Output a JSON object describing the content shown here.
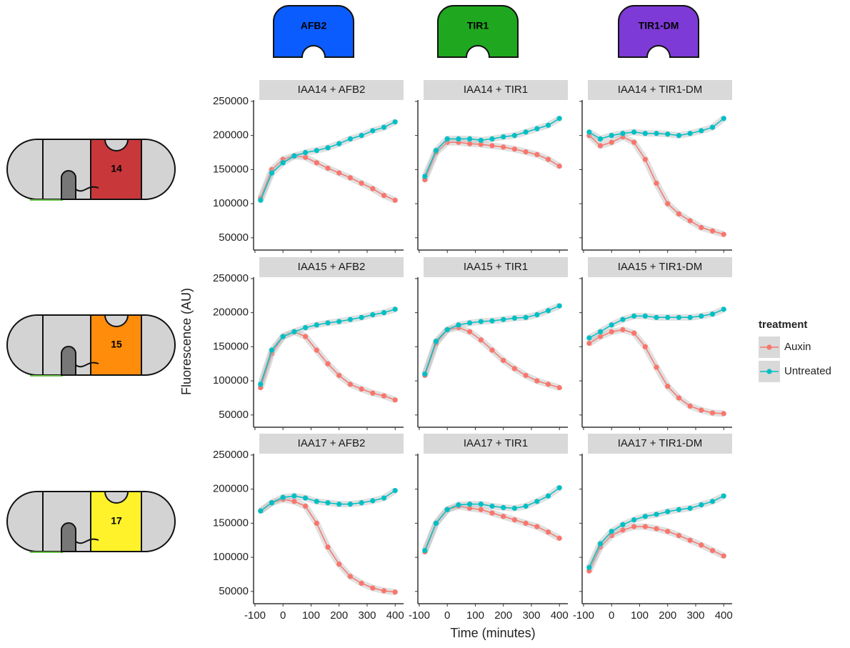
{
  "figure": {
    "xlabel": "Time (minutes)",
    "ylabel": "Fluorescence (AU)",
    "legend_title": "treatment",
    "legend": [
      {
        "name": "Auxin",
        "color": "#F8766D"
      },
      {
        "name": "Untreated",
        "color": "#00BFC4"
      }
    ],
    "column_headers": [
      {
        "label": "AFB2",
        "color": "#0a5cff"
      },
      {
        "label": "TIR1",
        "color": "#1fa81f"
      },
      {
        "label": "TIR1-DM",
        "color": "#7d3ad6"
      }
    ],
    "row_labels": [
      {
        "label": "14",
        "color": "#c8373a"
      },
      {
        "label": "15",
        "color": "#ff8c0a"
      },
      {
        "label": "17",
        "color": "#fff22a"
      }
    ]
  },
  "chart_data": [
    {
      "type": "scatter",
      "title": "IAA14 + AFB2",
      "x": [
        -80,
        -40,
        0,
        40,
        80,
        120,
        160,
        200,
        240,
        280,
        320,
        360,
        400
      ],
      "series": [
        {
          "values": [
            108000,
            150000,
            165000,
            170000,
            168000,
            160000,
            152000,
            145000,
            138000,
            130000,
            122000,
            112000,
            105000
          ]
        },
        {
          "values": [
            105000,
            145000,
            160000,
            170000,
            175000,
            178000,
            182000,
            188000,
            195000,
            200000,
            207000,
            212000,
            220000
          ]
        }
      ],
      "xlim": [
        -105,
        430
      ],
      "ylim": [
        32000,
        252000
      ],
      "xticks": [
        -100,
        0,
        100,
        200,
        300,
        400
      ],
      "yticks": [
        50000,
        100000,
        150000,
        200000,
        250000
      ]
    },
    {
      "type": "scatter",
      "title": "IAA14 + TIR1",
      "x": [
        -80,
        -40,
        0,
        40,
        80,
        120,
        160,
        200,
        240,
        280,
        320,
        360,
        400
      ],
      "series": [
        {
          "values": [
            135000,
            175000,
            190000,
            190000,
            188000,
            187000,
            185000,
            183000,
            180000,
            176000,
            172000,
            165000,
            155000
          ]
        },
        {
          "values": [
            140000,
            178000,
            195000,
            195000,
            195000,
            193000,
            195000,
            198000,
            200000,
            205000,
            210000,
            215000,
            225000
          ]
        }
      ],
      "xlim": [
        -105,
        430
      ],
      "ylim": [
        32000,
        252000
      ],
      "xticks": [
        -100,
        0,
        100,
        200,
        300,
        400
      ],
      "yticks": [
        50000,
        100000,
        150000,
        200000,
        250000
      ]
    },
    {
      "type": "scatter",
      "title": "IAA14 + TIR1-DM",
      "x": [
        -80,
        -40,
        0,
        40,
        80,
        120,
        160,
        200,
        240,
        280,
        320,
        360,
        400
      ],
      "series": [
        {
          "values": [
            200000,
            185000,
            190000,
            198000,
            190000,
            165000,
            130000,
            100000,
            85000,
            75000,
            65000,
            60000,
            55000
          ]
        },
        {
          "values": [
            205000,
            195000,
            200000,
            203000,
            205000,
            203000,
            203000,
            202000,
            200000,
            203000,
            207000,
            212000,
            225000
          ]
        }
      ],
      "xlim": [
        -105,
        430
      ],
      "ylim": [
        32000,
        252000
      ],
      "xticks": [
        -100,
        0,
        100,
        200,
        300,
        400
      ],
      "yticks": [
        50000,
        100000,
        150000,
        200000,
        250000
      ]
    },
    {
      "type": "scatter",
      "title": "IAA15 + AFB2",
      "x": [
        -80,
        -40,
        0,
        40,
        80,
        120,
        160,
        200,
        240,
        280,
        320,
        360,
        400
      ],
      "series": [
        {
          "values": [
            90000,
            140000,
            165000,
            172000,
            165000,
            145000,
            125000,
            108000,
            95000,
            88000,
            82000,
            78000,
            72000
          ]
        },
        {
          "values": [
            95000,
            145000,
            165000,
            172000,
            178000,
            182000,
            185000,
            187000,
            190000,
            193000,
            197000,
            200000,
            205000
          ]
        }
      ],
      "xlim": [
        -105,
        430
      ],
      "ylim": [
        32000,
        252000
      ],
      "xticks": [
        -100,
        0,
        100,
        200,
        300,
        400
      ],
      "yticks": [
        50000,
        100000,
        150000,
        200000,
        250000
      ]
    },
    {
      "type": "scatter",
      "title": "IAA15 + TIR1",
      "x": [
        -80,
        -40,
        0,
        40,
        80,
        120,
        160,
        200,
        240,
        280,
        320,
        360,
        400
      ],
      "series": [
        {
          "values": [
            108000,
            155000,
            175000,
            178000,
            172000,
            160000,
            145000,
            130000,
            118000,
            108000,
            100000,
            95000,
            90000
          ]
        },
        {
          "values": [
            110000,
            158000,
            175000,
            182000,
            185000,
            187000,
            188000,
            190000,
            192000,
            193000,
            197000,
            203000,
            210000
          ]
        }
      ],
      "xlim": [
        -105,
        430
      ],
      "ylim": [
        32000,
        252000
      ],
      "xticks": [
        -100,
        0,
        100,
        200,
        300,
        400
      ],
      "yticks": [
        50000,
        100000,
        150000,
        200000,
        250000
      ]
    },
    {
      "type": "scatter",
      "title": "IAA15 + TIR1-DM",
      "x": [
        -80,
        -40,
        0,
        40,
        80,
        120,
        160,
        200,
        240,
        280,
        320,
        360,
        400
      ],
      "series": [
        {
          "values": [
            155000,
            165000,
            172000,
            175000,
            170000,
            150000,
            120000,
            92000,
            75000,
            63000,
            57000,
            53000,
            52000
          ]
        },
        {
          "values": [
            163000,
            172000,
            182000,
            190000,
            195000,
            195000,
            193000,
            193000,
            193000,
            193000,
            195000,
            198000,
            205000
          ]
        }
      ],
      "xlim": [
        -105,
        430
      ],
      "ylim": [
        32000,
        252000
      ],
      "xticks": [
        -100,
        0,
        100,
        200,
        300,
        400
      ],
      "yticks": [
        50000,
        100000,
        150000,
        200000,
        250000
      ]
    },
    {
      "type": "scatter",
      "title": "IAA17 + AFB2",
      "x": [
        -80,
        -40,
        0,
        40,
        80,
        120,
        160,
        200,
        240,
        280,
        320,
        360,
        400
      ],
      "series": [
        {
          "values": [
            168000,
            180000,
            185000,
            182000,
            175000,
            150000,
            115000,
            90000,
            72000,
            62000,
            55000,
            51000,
            49000
          ]
        },
        {
          "values": [
            168000,
            180000,
            188000,
            190000,
            187000,
            182000,
            180000,
            178000,
            178000,
            180000,
            183000,
            187000,
            198000
          ]
        }
      ],
      "xlim": [
        -105,
        430
      ],
      "ylim": [
        32000,
        252000
      ],
      "xticks": [
        -100,
        0,
        100,
        200,
        300,
        400
      ],
      "yticks": [
        50000,
        100000,
        150000,
        200000,
        250000
      ]
    },
    {
      "type": "scatter",
      "title": "IAA17 + TIR1",
      "x": [
        -80,
        -40,
        0,
        40,
        80,
        120,
        160,
        200,
        240,
        280,
        320,
        360,
        400
      ],
      "series": [
        {
          "values": [
            108000,
            150000,
            170000,
            175000,
            172000,
            170000,
            165000,
            160000,
            155000,
            150000,
            145000,
            137000,
            128000
          ]
        },
        {
          "values": [
            110000,
            150000,
            170000,
            177000,
            178000,
            178000,
            175000,
            173000,
            172000,
            175000,
            182000,
            190000,
            202000
          ]
        }
      ],
      "xlim": [
        -105,
        430
      ],
      "ylim": [
        32000,
        252000
      ],
      "xticks": [
        -100,
        0,
        100,
        200,
        300,
        400
      ],
      "yticks": [
        50000,
        100000,
        150000,
        200000,
        250000
      ]
    },
    {
      "type": "scatter",
      "title": "IAA17 + TIR1-DM",
      "x": [
        -80,
        -40,
        0,
        40,
        80,
        120,
        160,
        200,
        240,
        280,
        320,
        360,
        400
      ],
      "series": [
        {
          "values": [
            80000,
            115000,
            132000,
            140000,
            145000,
            145000,
            142000,
            138000,
            132000,
            125000,
            118000,
            110000,
            102000
          ]
        },
        {
          "values": [
            85000,
            120000,
            138000,
            148000,
            155000,
            160000,
            163000,
            167000,
            170000,
            172000,
            177000,
            182000,
            190000
          ]
        }
      ],
      "xlim": [
        -105,
        430
      ],
      "ylim": [
        32000,
        252000
      ],
      "xticks": [
        -100,
        0,
        100,
        200,
        300,
        400
      ],
      "yticks": [
        50000,
        100000,
        150000,
        200000,
        250000
      ]
    }
  ]
}
